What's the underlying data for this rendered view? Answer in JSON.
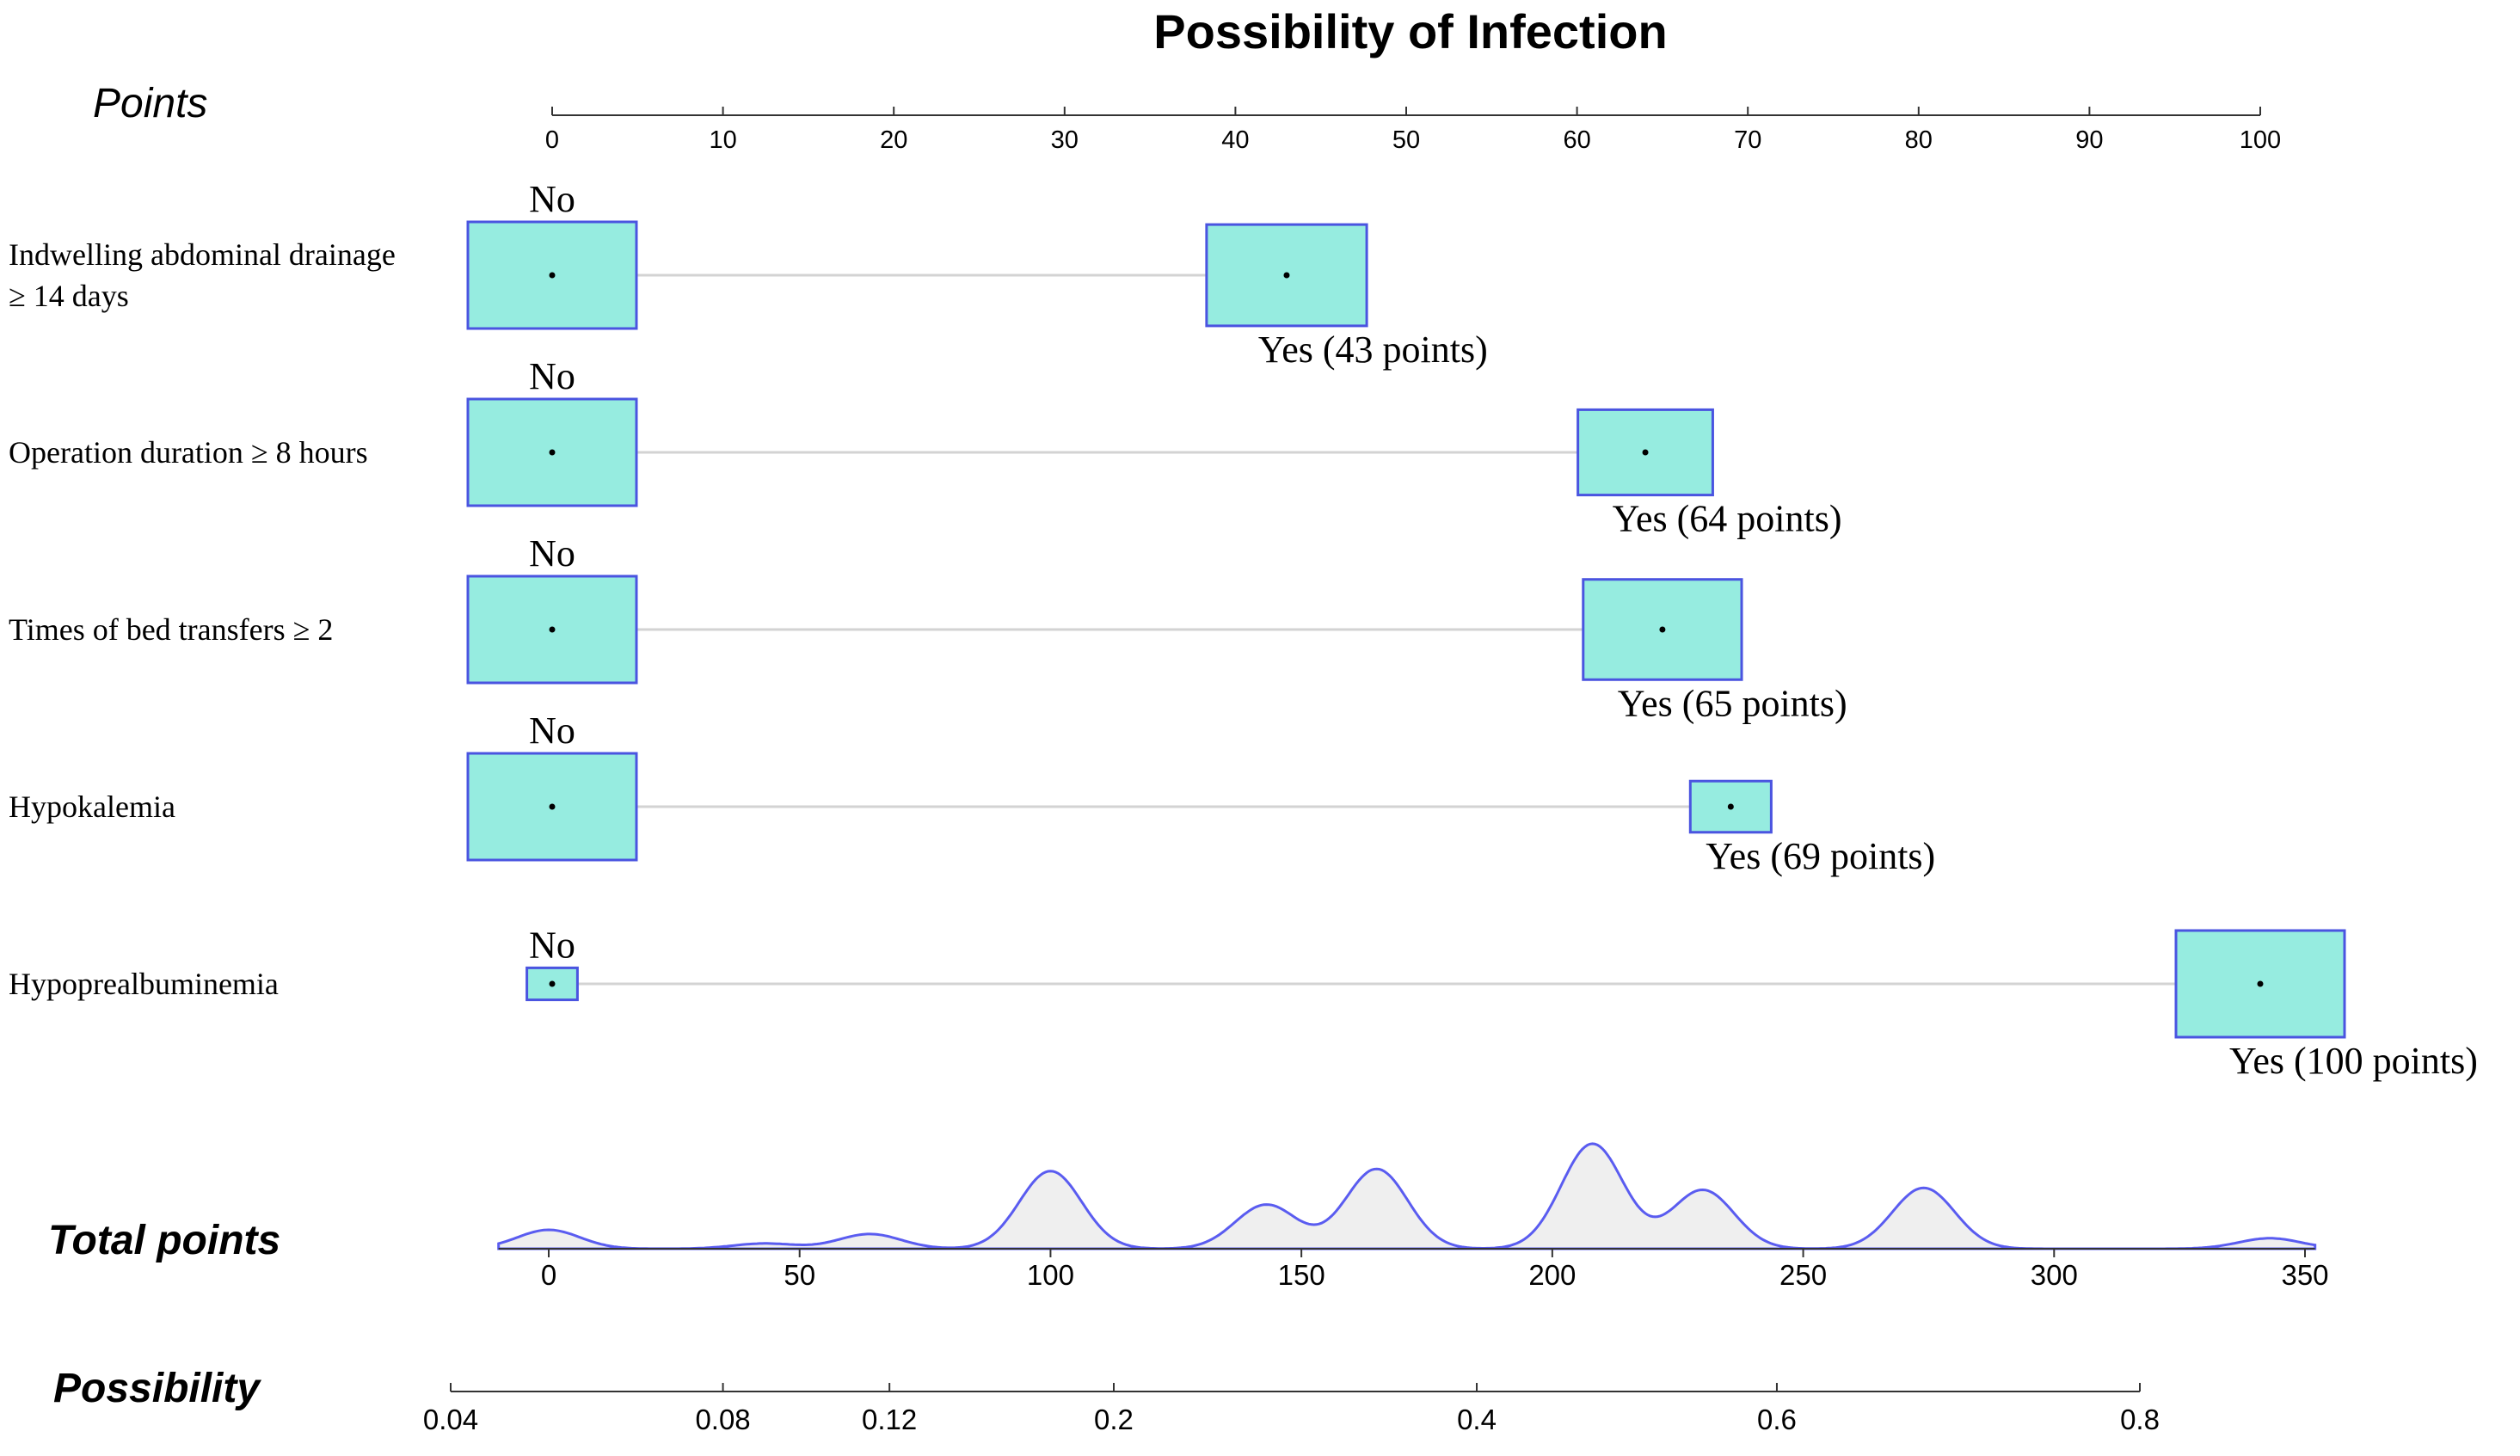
{
  "chart_data": {
    "type": "nomogram",
    "title": "Possibility of Infection",
    "points_axis": {
      "label": "Points",
      "range": [
        0,
        100
      ],
      "ticks": [
        0,
        10,
        20,
        30,
        40,
        50,
        60,
        70,
        80,
        90,
        100
      ],
      "tick_labels": [
        "0",
        "10",
        "20",
        "30",
        "40",
        "50",
        "60",
        "70",
        "80",
        "90",
        "100"
      ]
    },
    "variables": [
      {
        "name_lines": [
          "Indwelling abdominal drainage",
          "≥ 14 days"
        ],
        "levels": [
          {
            "label": "No",
            "points": 0,
            "weight": 1.0
          },
          {
            "label": "Yes (43 points)",
            "points": 43,
            "weight": 0.95
          }
        ]
      },
      {
        "name_lines": [
          "Operation duration ≥ 8 hours"
        ],
        "levels": [
          {
            "label": "No",
            "points": 0,
            "weight": 1.0
          },
          {
            "label": "Yes  (64 points)",
            "points": 64,
            "weight": 0.8
          }
        ]
      },
      {
        "name_lines": [
          "Times of bed transfers ≥ 2"
        ],
        "levels": [
          {
            "label": "No",
            "points": 0,
            "weight": 1.0
          },
          {
            "label": "Yes (65 points)",
            "points": 65,
            "weight": 0.94
          }
        ]
      },
      {
        "name_lines": [
          "Hypokalemia"
        ],
        "levels": [
          {
            "label": "No",
            "points": 0,
            "weight": 1.0
          },
          {
            "label": "Yes  (69 points)",
            "points": 69,
            "weight": 0.48
          }
        ]
      },
      {
        "name_lines": [
          "Hypoprealbuminemia"
        ],
        "levels": [
          {
            "label": "No",
            "points": 0,
            "weight": 0.3
          },
          {
            "label": "Yes  (100 points)",
            "points": 100,
            "weight": 1.0
          }
        ]
      }
    ],
    "total_points_axis": {
      "label": "Total points",
      "range": [
        -10,
        350
      ],
      "ticks": [
        0,
        50,
        100,
        150,
        200,
        250,
        300,
        350
      ],
      "tick_labels": [
        "0",
        "50",
        "100",
        "150",
        "200",
        "250",
        "300",
        "350"
      ],
      "density_peaks": [
        {
          "center": 0,
          "height": 0.18
        },
        {
          "center": 43,
          "height": 0.05
        },
        {
          "center": 64,
          "height": 0.14
        },
        {
          "center": 100,
          "height": 0.74
        },
        {
          "center": 143,
          "height": 0.42
        },
        {
          "center": 165,
          "height": 0.76
        },
        {
          "center": 208,
          "height": 1.0
        },
        {
          "center": 230,
          "height": 0.56
        },
        {
          "center": 274,
          "height": 0.58
        },
        {
          "center": 343,
          "height": 0.1
        }
      ]
    },
    "possibility_axis": {
      "label": "Possibility",
      "ticks": [
        0.04,
        0.08,
        0.12,
        0.2,
        0.4,
        0.6,
        0.8
      ],
      "tick_labels": [
        "0.04",
        "0.08",
        "0.12",
        "0.2",
        "0.4",
        "0.6",
        "0.8"
      ]
    }
  }
}
